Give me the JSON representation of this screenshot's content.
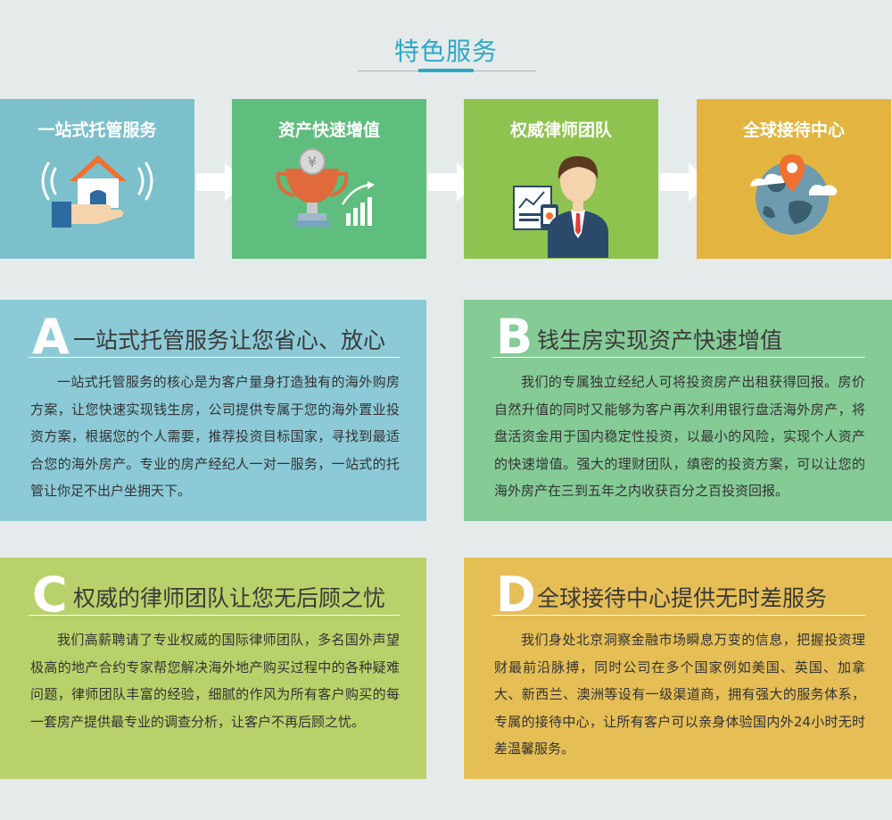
{
  "header": {
    "title": "特色服务"
  },
  "cards": [
    {
      "label": "一站式托管服务",
      "icon": "house-hand-icon"
    },
    {
      "label": "资产快速增值",
      "icon": "trophy-growth-icon"
    },
    {
      "label": "权威律师团队",
      "icon": "lawyer-icon"
    },
    {
      "label": "全球接待中心",
      "icon": "globe-pin-icon"
    }
  ],
  "sections": [
    {
      "letter": "A",
      "heading": "一站式托管服务让您省心、放心",
      "body": "一站式托管服务的核心是为客户量身打造独有的海外购房方案，让您快速实现钱生房，公司提供专属于您的海外置业投资方案，根据您的个人需要，推荐投资目标国家，寻找到最适合您的海外房产。专业的房产经纪人一对一服务，一站式的托管让你足不出户坐拥天下。"
    },
    {
      "letter": "B",
      "heading": "钱生房实现资产快速增值",
      "body": "我们的专属独立经纪人可将投资房产出租获得回报。房价自然升值的同时又能够为客户再次利用银行盘活海外房产，将盘活资金用于国内稳定性投资，以最小的风险，实现个人资产的快速增值。强大的理财团队，缜密的投资方案，可以让您的海外房产在三到五年之内收获百分之百投资回报。"
    },
    {
      "letter": "C",
      "heading": "权威的律师团队让您无后顾之忧",
      "body": "我们高薪聘请了专业权威的国际律师团队，多名国外声望极高的地产合约专家帮您解决海外地产购买过程中的各种疑难问题，律师团队丰富的经验，细腻的作风为所有客户购买的每一套房产提供最专业的调查分析，让客户不再后顾之忧。"
    },
    {
      "letter": "D",
      "heading": "全球接待中心提供无时差服务",
      "body": "我们身处北京洞察金融市场瞬息万变的信息，把握投资理财最前沿脉搏，同时公司在多个国家例如美国、英国、加拿大、新西兰、澳洲等设有一级渠道商，拥有强大的服务体系，专属的接待中心，让所有客户可以亲身体验国内外24小时无时差温馨服务。"
    }
  ],
  "colors": {
    "background": "#e4ebea",
    "accent": "#2fa8c8",
    "card1": "#7cc0cc",
    "card2": "#5fbe7d",
    "card3": "#8fc350",
    "card4": "#e3b540",
    "panelA": "#8ccad7",
    "panelB": "#85cb96",
    "panelC": "#b9d16a",
    "panelD": "#e5be56"
  }
}
